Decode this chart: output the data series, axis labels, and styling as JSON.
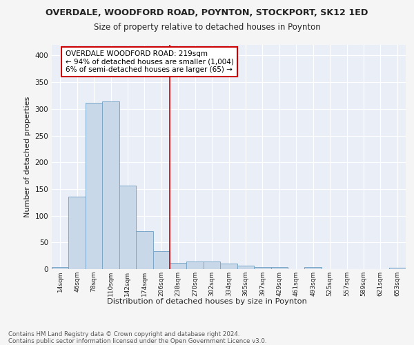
{
  "title1": "OVERDALE, WOODFORD ROAD, POYNTON, STOCKPORT, SK12 1ED",
  "title2": "Size of property relative to detached houses in Poynton",
  "xlabel": "Distribution of detached houses by size in Poynton",
  "ylabel": "Number of detached properties",
  "categories": [
    "14sqm",
    "46sqm",
    "78sqm",
    "110sqm",
    "142sqm",
    "174sqm",
    "206sqm",
    "238sqm",
    "270sqm",
    "302sqm",
    "334sqm",
    "365sqm",
    "397sqm",
    "429sqm",
    "461sqm",
    "493sqm",
    "525sqm",
    "557sqm",
    "589sqm",
    "621sqm",
    "653sqm"
  ],
  "values": [
    4,
    136,
    312,
    314,
    157,
    71,
    33,
    11,
    14,
    14,
    10,
    7,
    4,
    4,
    0,
    4,
    0,
    0,
    0,
    0,
    3
  ],
  "bar_color": "#c8d8e8",
  "bar_edge_color": "#7aa8c8",
  "vline_x": 6.5,
  "vline_color": "#cc0000",
  "annotation_text": "OVERDALE WOODFORD ROAD: 219sqm\n← 94% of detached houses are smaller (1,004)\n6% of semi-detached houses are larger (65) →",
  "annotation_box_color": "#ffffff",
  "annotation_box_edge": "#cc0000",
  "ylim": [
    0,
    420
  ],
  "yticks": [
    0,
    50,
    100,
    150,
    200,
    250,
    300,
    350,
    400
  ],
  "footer": "Contains HM Land Registry data © Crown copyright and database right 2024.\nContains public sector information licensed under the Open Government Licence v3.0.",
  "fig_bg_color": "#f5f5f5",
  "plot_bg_color": "#eaeff7"
}
